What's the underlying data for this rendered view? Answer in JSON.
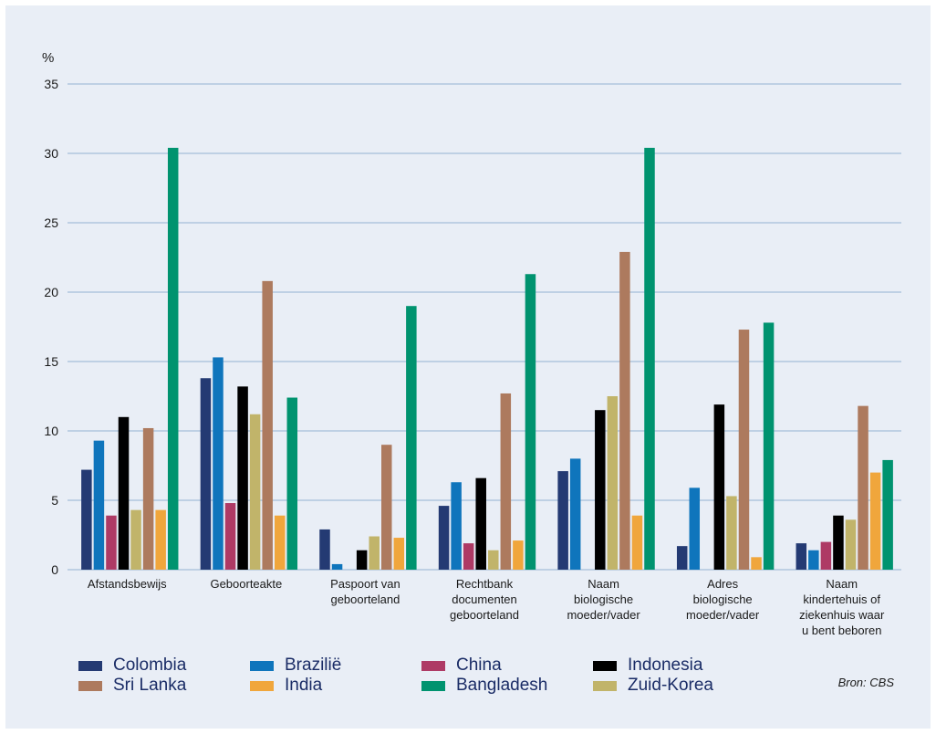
{
  "chart_data": {
    "type": "bar",
    "unit_label": "%",
    "ylim": [
      0,
      35
    ],
    "yticks": [
      0,
      5,
      10,
      15,
      20,
      25,
      30,
      35
    ],
    "grid": true,
    "legend_position": "bottom",
    "categories": [
      [
        "Afstandsbewijs"
      ],
      [
        "Geboorteakte"
      ],
      [
        "Paspoort van",
        "geboorteland"
      ],
      [
        "Rechtbank",
        "documenten",
        "geboorteland"
      ],
      [
        "Naam",
        "biologische",
        "moeder/vader"
      ],
      [
        "Adres",
        "biologische",
        "moeder/vader"
      ],
      [
        "Naam",
        "kindertehuis of",
        "ziekenhuis waar",
        "u bent beboren"
      ]
    ],
    "series": [
      {
        "name": "Colombia",
        "color": "#243a73",
        "values": [
          7.2,
          13.8,
          2.9,
          4.6,
          7.1,
          1.7,
          1.9
        ]
      },
      {
        "name": "Brazilië",
        "color": "#0f75bc",
        "values": [
          9.3,
          15.3,
          0.4,
          6.3,
          8.0,
          5.9,
          1.4
        ]
      },
      {
        "name": "China",
        "color": "#ae3a65",
        "values": [
          3.9,
          4.8,
          0,
          1.9,
          0,
          0,
          2.0
        ]
      },
      {
        "name": "Indonesia",
        "color": "#000000",
        "values": [
          11.0,
          13.2,
          1.4,
          6.6,
          11.5,
          11.9,
          3.9
        ]
      },
      {
        "name": "Zuid-Korea",
        "color": "#c1b46a",
        "values": [
          4.3,
          11.2,
          2.4,
          1.4,
          12.5,
          5.3,
          3.6
        ]
      },
      {
        "name": "Sri Lanka",
        "color": "#ad7a5e",
        "values": [
          10.2,
          20.8,
          9.0,
          12.7,
          22.9,
          17.3,
          11.8
        ]
      },
      {
        "name": "India",
        "color": "#f0a63c",
        "values": [
          4.3,
          3.9,
          2.3,
          2.1,
          3.9,
          0.9,
          7.0
        ]
      },
      {
        "name": "Bangladesh",
        "color": "#00936f",
        "values": [
          30.4,
          12.4,
          19.0,
          21.3,
          30.4,
          17.8,
          7.9
        ]
      }
    ]
  },
  "legend": [
    {
      "name": "Colombia",
      "color": "#243a73"
    },
    {
      "name": "Brazilië",
      "color": "#0f75bc"
    },
    {
      "name": "China",
      "color": "#ae3a65"
    },
    {
      "name": "Indonesia",
      "color": "#000000"
    },
    {
      "name": "Sri Lanka",
      "color": "#ad7a5e"
    },
    {
      "name": "India",
      "color": "#f0a63c"
    },
    {
      "name": "Bangladesh",
      "color": "#00936f"
    },
    {
      "name": "Zuid-Korea",
      "color": "#c1b46a"
    }
  ],
  "source": "Bron: CBS"
}
